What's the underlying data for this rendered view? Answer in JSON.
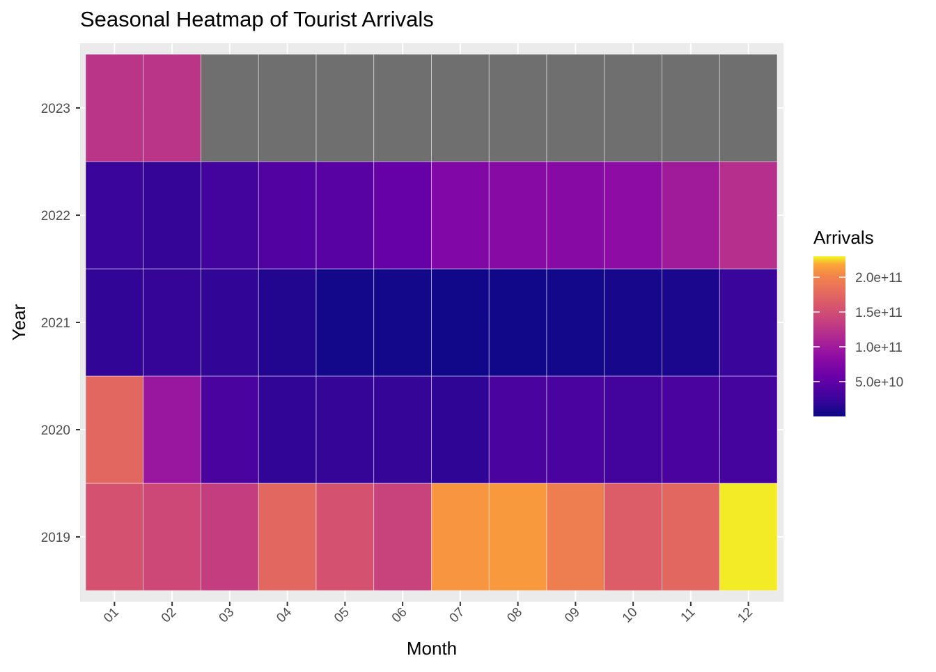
{
  "chart_data": {
    "type": "heatmap",
    "title": "Seasonal Heatmap of Tourist Arrivals",
    "xlabel": "Month",
    "ylabel": "Year",
    "x": [
      "01",
      "02",
      "03",
      "04",
      "05",
      "06",
      "07",
      "08",
      "09",
      "10",
      "11",
      "12"
    ],
    "y": [
      "2019",
      "2020",
      "2021",
      "2022",
      "2023"
    ],
    "values": [
      [
        155000000000,
        145000000000,
        135000000000,
        175000000000,
        155000000000,
        140000000000,
        210000000000,
        212000000000,
        195000000000,
        165000000000,
        175000000000,
        228000000000
      ],
      [
        175000000000,
        95000000000,
        35000000000,
        20000000000,
        22000000000,
        22000000000,
        18000000000,
        35000000000,
        35000000000,
        30000000000,
        35000000000,
        32000000000
      ],
      [
        20000000000,
        22000000000,
        20000000000,
        12000000000,
        3000000000,
        3000000000,
        2000000000,
        2000000000,
        3000000000,
        5000000000,
        8000000000,
        25000000000
      ],
      [
        25000000000,
        22000000000,
        30000000000,
        40000000000,
        45000000000,
        55000000000,
        75000000000,
        80000000000,
        80000000000,
        85000000000,
        100000000000,
        120000000000
      ],
      [
        125000000000,
        125000000000,
        null,
        null,
        null,
        null,
        null,
        null,
        null,
        null,
        null,
        null
      ]
    ],
    "colorbar": {
      "title": "Arrivals",
      "scale": "plasma",
      "min": 0,
      "max": 230000000000,
      "ticks": [
        50000000000,
        100000000000,
        150000000000,
        200000000000
      ],
      "tick_labels": [
        "5.0e+10",
        "1.0e+11",
        "1.5e+11",
        "2.0e+11"
      ]
    },
    "na_color": "#6f6f6f",
    "panel_background": "#ebebeb",
    "grid": true,
    "legend_position": "right"
  }
}
